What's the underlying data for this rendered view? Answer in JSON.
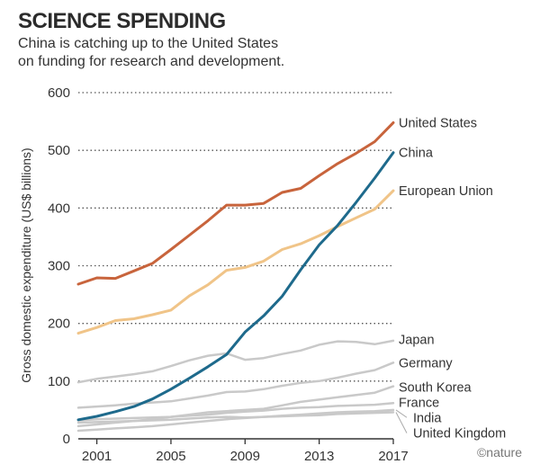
{
  "chart_data": {
    "type": "line",
    "title": "SCIENCE SPENDING",
    "subtitle_lines": [
      "China is catching up to the United States",
      "on funding for research and development."
    ],
    "ylabel": "Gross domestic expenditure (US$ billions)",
    "xlabel": "",
    "ylim": [
      0,
      600
    ],
    "yticks": [
      0,
      100,
      200,
      300,
      400,
      500,
      600
    ],
    "xlim": [
      2000,
      2017
    ],
    "xticks": [
      2001,
      2005,
      2009,
      2013,
      2017
    ],
    "grid": "horizontal dotted",
    "credit": "©nature",
    "x": [
      2000,
      2001,
      2002,
      2003,
      2004,
      2005,
      2006,
      2007,
      2008,
      2009,
      2010,
      2011,
      2012,
      2013,
      2014,
      2015,
      2016,
      2017
    ],
    "series": [
      {
        "name": "United States",
        "color": "#c8643c",
        "width": 3,
        "values": [
          268,
          279,
          278,
          291,
          304,
          328,
          353,
          378,
          405,
          405,
          408,
          427,
          434,
          456,
          477,
          495,
          515,
          548
        ]
      },
      {
        "name": "China",
        "color": "#1e6a8c",
        "width": 3,
        "values": [
          33,
          39,
          47,
          56,
          69,
          86,
          105,
          125,
          146,
          185,
          213,
          247,
          293,
          336,
          370,
          410,
          452,
          496
        ]
      },
      {
        "name": "European Union",
        "color": "#f0c488",
        "width": 3,
        "values": [
          183,
          193,
          205,
          208,
          215,
          223,
          248,
          267,
          292,
          297,
          308,
          328,
          338,
          352,
          368,
          383,
          398,
          430
        ]
      },
      {
        "name": "Japan",
        "color": "#c9c9c9",
        "width": 2.5,
        "values": [
          98,
          104,
          108,
          112,
          117,
          126,
          136,
          144,
          148,
          137,
          140,
          147,
          153,
          163,
          169,
          168,
          164,
          170
        ]
      },
      {
        "name": "Germany",
        "color": "#c9c9c9",
        "width": 2.5,
        "values": [
          54,
          56,
          58,
          61,
          63,
          65,
          70,
          75,
          81,
          82,
          86,
          92,
          97,
          100,
          106,
          113,
          119,
          132
        ]
      },
      {
        "name": "South Korea",
        "color": "#c9c9c9",
        "width": 2.5,
        "values": [
          22,
          25,
          28,
          31,
          34,
          38,
          42,
          46,
          48,
          50,
          52,
          58,
          64,
          68,
          72,
          76,
          80,
          91
        ]
      },
      {
        "name": "France",
        "color": "#c9c9c9",
        "width": 2.5,
        "values": [
          32,
          34,
          35,
          36,
          37,
          38,
          40,
          42,
          45,
          47,
          49,
          52,
          54,
          55,
          57,
          58,
          59,
          62
        ]
      },
      {
        "name": "India",
        "color": "#c9c9c9",
        "width": 2.5,
        "values": [
          14,
          16,
          18,
          20,
          22,
          25,
          28,
          31,
          34,
          36,
          38,
          40,
          42,
          44,
          46,
          47,
          48,
          50
        ]
      },
      {
        "name": "United Kingdom",
        "color": "#c9c9c9",
        "width": 2.5,
        "values": [
          28,
          29,
          30,
          31,
          32,
          33,
          35,
          37,
          38,
          37,
          38,
          39,
          40,
          41,
          43,
          44,
          45,
          46
        ]
      }
    ],
    "series_label_positions": [
      {
        "name": "United States",
        "y": 548
      },
      {
        "name": "China",
        "y": 496
      },
      {
        "name": "European Union",
        "y": 430
      },
      {
        "name": "Japan",
        "y": 172
      },
      {
        "name": "Germany",
        "y": 132
      },
      {
        "name": "South Korea",
        "y": 90
      },
      {
        "name": "France",
        "y": 63
      },
      {
        "name": "India",
        "y": 37
      },
      {
        "name": "United Kingdom",
        "y": 10
      }
    ]
  }
}
